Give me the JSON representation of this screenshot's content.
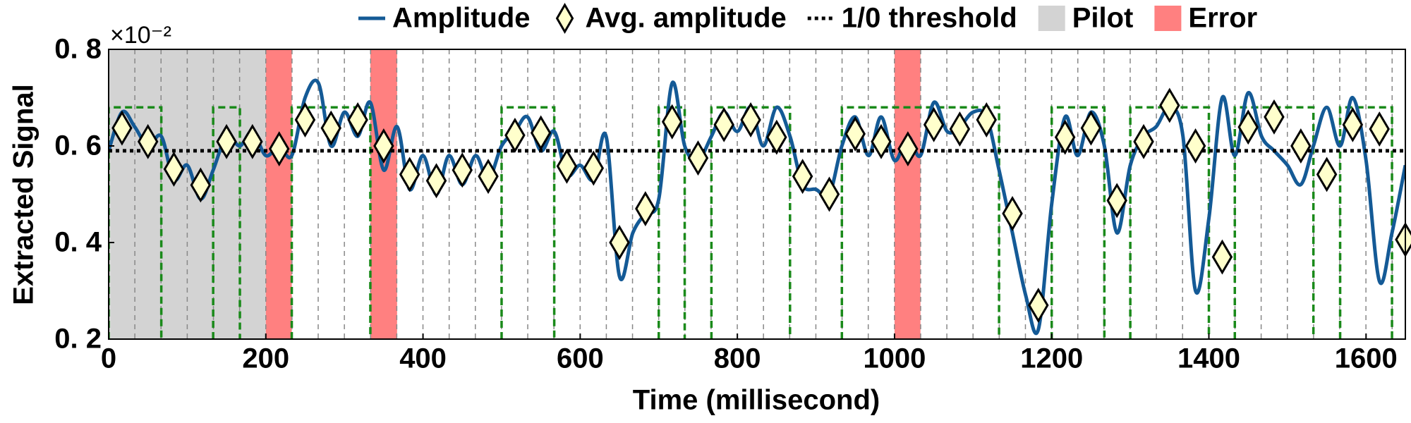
{
  "chart_data": {
    "type": "line",
    "y_label": "Extracted Signal",
    "x_label": "Time (millisecond)",
    "y_multiplier": "×10⁻²",
    "xlim": [
      0,
      1650
    ],
    "ylim": [
      0.2,
      0.8
    ],
    "xticks": [
      0,
      200,
      400,
      600,
      800,
      1000,
      1200,
      1400,
      1600
    ],
    "yticks": [
      {
        "value": 0.2,
        "label": "0. 2"
      },
      {
        "value": 0.4,
        "label": "0. 4"
      },
      {
        "value": 0.6,
        "label": "0. 6"
      },
      {
        "value": 0.8,
        "label": "0. 8"
      }
    ],
    "vgrid_step": 33.33,
    "x": [
      0,
      17,
      33,
      50,
      67,
      83,
      100,
      117,
      133,
      150,
      167,
      183,
      200,
      217,
      233,
      250,
      267,
      283,
      300,
      317,
      333,
      350,
      367,
      383,
      400,
      417,
      433,
      450,
      467,
      483,
      500,
      517,
      533,
      550,
      567,
      583,
      600,
      617,
      633,
      650,
      667,
      683,
      700,
      717,
      733,
      750,
      767,
      783,
      800,
      817,
      833,
      850,
      867,
      883,
      900,
      917,
      933,
      950,
      967,
      983,
      1000,
      1017,
      1033,
      1050,
      1067,
      1083,
      1100,
      1117,
      1133,
      1150,
      1167,
      1183,
      1200,
      1217,
      1233,
      1250,
      1267,
      1283,
      1300,
      1317,
      1333,
      1350,
      1367,
      1383,
      1400,
      1417,
      1433,
      1450,
      1467,
      1483,
      1500,
      1517,
      1533,
      1550,
      1567,
      1583,
      1600,
      1617,
      1633,
      1650
    ],
    "series": [
      {
        "name": "Amplitude",
        "color": "#145a96",
        "values": [
          0.59,
          0.67,
          0.64,
          0.6,
          0.62,
          0.53,
          0.56,
          0.49,
          0.55,
          0.62,
          0.6,
          0.63,
          0.58,
          0.6,
          0.58,
          0.7,
          0.73,
          0.6,
          0.67,
          0.62,
          0.69,
          0.55,
          0.64,
          0.51,
          0.58,
          0.5,
          0.58,
          0.52,
          0.58,
          0.53,
          0.6,
          0.63,
          0.66,
          0.59,
          0.63,
          0.54,
          0.56,
          0.53,
          0.62,
          0.33,
          0.42,
          0.46,
          0.49,
          0.73,
          0.6,
          0.57,
          0.62,
          0.67,
          0.63,
          0.68,
          0.6,
          0.68,
          0.62,
          0.52,
          0.51,
          0.5,
          0.6,
          0.66,
          0.58,
          0.66,
          0.57,
          0.62,
          0.58,
          0.69,
          0.63,
          0.64,
          0.67,
          0.66,
          0.55,
          0.42,
          0.29,
          0.22,
          0.48,
          0.66,
          0.58,
          0.67,
          0.6,
          0.42,
          0.56,
          0.62,
          0.64,
          0.68,
          0.62,
          0.3,
          0.45,
          0.7,
          0.58,
          0.71,
          0.62,
          0.59,
          0.56,
          0.52,
          0.6,
          0.68,
          0.6,
          0.7,
          0.57,
          0.32,
          0.42,
          0.56
        ]
      },
      {
        "name": "Avg. amplitude",
        "color": "#ffffcc",
        "x": [
          17,
          50,
          83,
          117,
          150,
          183,
          217,
          250,
          283,
          317,
          350,
          383,
          417,
          450,
          483,
          517,
          550,
          583,
          617,
          650,
          683,
          717,
          750,
          783,
          817,
          850,
          883,
          917,
          950,
          983,
          1017,
          1050,
          1083,
          1117,
          1150,
          1183,
          1217,
          1250,
          1283,
          1317,
          1350,
          1383,
          1417,
          1450,
          1483,
          1517,
          1550,
          1583,
          1617,
          1650
        ],
        "values": [
          0.637,
          0.609,
          0.552,
          0.519,
          0.609,
          0.609,
          0.594,
          0.654,
          0.637,
          0.654,
          0.6,
          0.541,
          0.528,
          0.55,
          0.537,
          0.622,
          0.627,
          0.558,
          0.554,
          0.4,
          0.47,
          0.65,
          0.575,
          0.644,
          0.654,
          0.618,
          0.537,
          0.5,
          0.625,
          0.609,
          0.594,
          0.644,
          0.635,
          0.654,
          0.46,
          0.27,
          0.618,
          0.637,
          0.487,
          0.609,
          0.684,
          0.6,
          0.37,
          0.639,
          0.66,
          0.6,
          0.541,
          0.644,
          0.635,
          0.406
        ]
      },
      {
        "name": "1/0 threshold",
        "color": "#000000",
        "value": 0.59
      },
      {
        "name": "Pilot",
        "color": "#d3d3d3",
        "interval": [
          0,
          200
        ]
      },
      {
        "name": "Error",
        "color": "#ff8080",
        "intervals": [
          [
            200,
            233
          ],
          [
            333,
            367
          ],
          [
            1000,
            1033
          ]
        ]
      }
    ],
    "high_level": 0.68,
    "high_color": "#1a8a1a",
    "high_intervals": [
      [
        0,
        67
      ],
      [
        133,
        167
      ],
      [
        233,
        333
      ],
      [
        500,
        567
      ],
      [
        700,
        733
      ],
      [
        767,
        867
      ],
      [
        933,
        1133
      ],
      [
        1200,
        1267
      ],
      [
        1300,
        1400
      ],
      [
        1433,
        1533
      ],
      [
        1567,
        1633
      ]
    ]
  }
}
